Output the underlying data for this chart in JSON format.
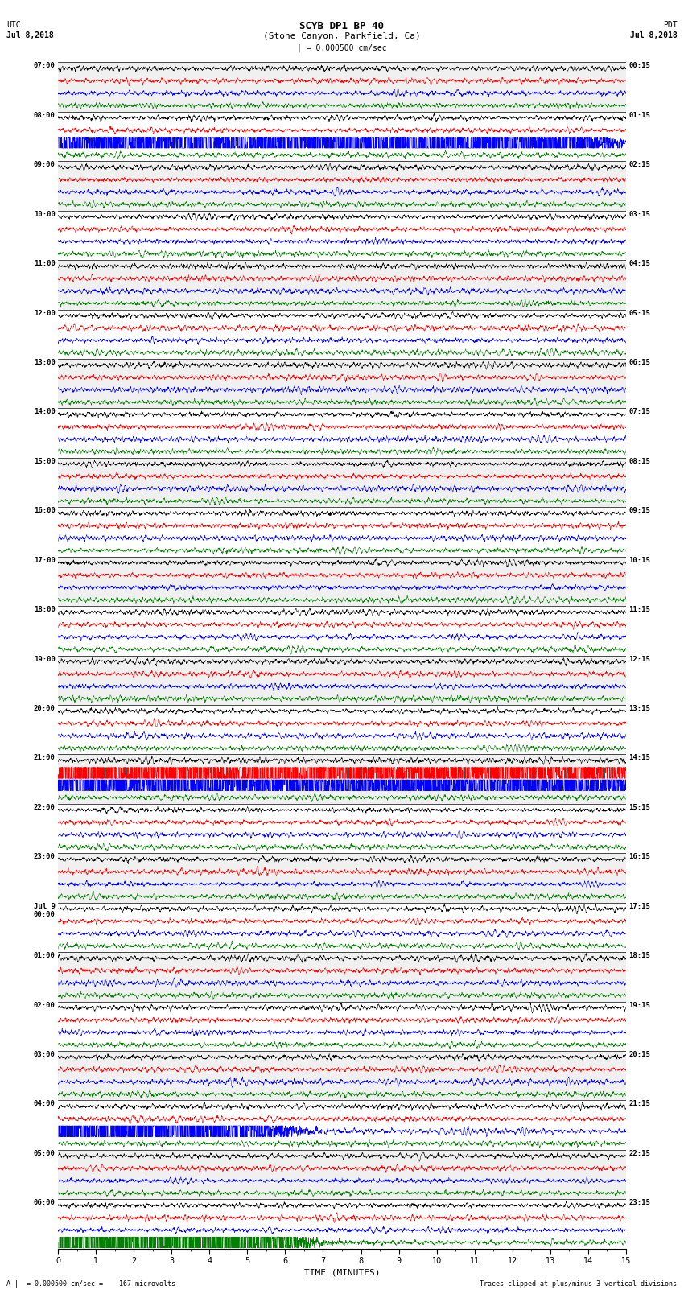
{
  "title_line1": "SCYB DP1 BP 40",
  "title_line2": "(Stone Canyon, Parkfield, Ca)",
  "scale_text": "| = 0.000500 cm/sec",
  "left_label_top": "UTC",
  "left_label_date": "Jul 8,2018",
  "right_label_top": "PDT",
  "right_label_date": "Jul 8,2018",
  "footer_left": "A |  = 0.000500 cm/sec =    167 microvolts",
  "footer_right": "Traces clipped at plus/minus 3 vertical divisions",
  "xlabel": "TIME (MINUTES)",
  "xmin": 0,
  "xmax": 15,
  "num_groups": 24,
  "traces_per_group": 4,
  "colors": [
    "black",
    "red",
    "blue",
    "green"
  ],
  "group_labels_left": [
    "07:00",
    "08:00",
    "09:00",
    "10:00",
    "11:00",
    "12:00",
    "13:00",
    "14:00",
    "15:00",
    "16:00",
    "17:00",
    "18:00",
    "19:00",
    "20:00",
    "21:00",
    "22:00",
    "23:00",
    "Jul 9\n00:00",
    "01:00",
    "02:00",
    "03:00",
    "04:00",
    "05:00",
    "06:00"
  ],
  "group_labels_right": [
    "00:15",
    "01:15",
    "02:15",
    "03:15",
    "04:15",
    "05:15",
    "06:15",
    "07:15",
    "08:15",
    "09:15",
    "10:15",
    "11:15",
    "12:15",
    "13:15",
    "14:15",
    "15:15",
    "16:15",
    "17:15",
    "18:15",
    "19:15",
    "20:15",
    "21:15",
    "22:15",
    "23:15"
  ],
  "fig_width": 8.5,
  "fig_height": 16.13,
  "bg_colors": [
    "#f0f0f0",
    "#ffffff"
  ]
}
